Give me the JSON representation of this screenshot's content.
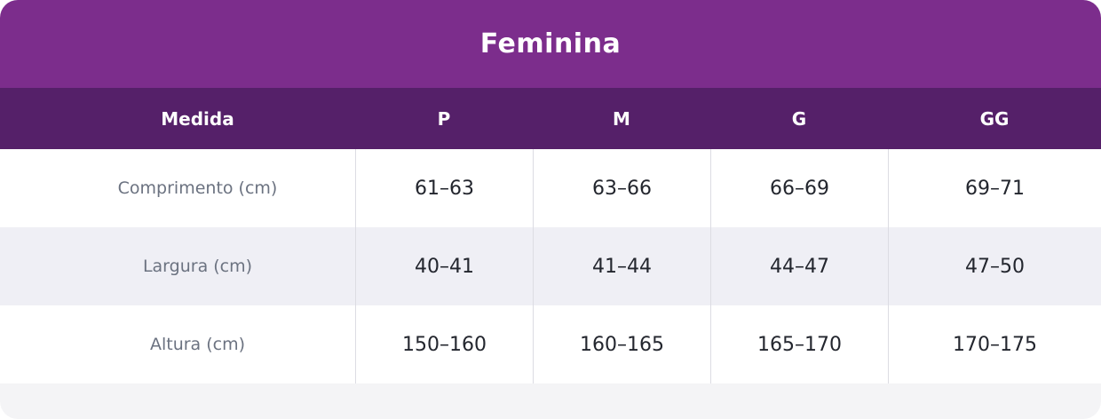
{
  "chart_data": {
    "type": "table",
    "title": "Feminina",
    "columns": [
      "Medida",
      "P",
      "M",
      "G",
      "GG"
    ],
    "rows": [
      [
        "Comprimento (cm)",
        "61–63",
        "63–66",
        "66–69",
        "69–71"
      ],
      [
        "Largura (cm)",
        "40–41",
        "41–44",
        "44–47",
        "47–50"
      ],
      [
        "Altura (cm)",
        "150–160",
        "160–165",
        "165–170",
        "170–175"
      ]
    ]
  },
  "colors": {
    "title_band_purple": "#7c2d8c",
    "header_row_purple": "#552069",
    "stripe_row": "#efeff5",
    "footer_gray": "#f4f4f6",
    "divider": "#dcdce3",
    "label_text": "#6b7280",
    "value_text": "#23262e",
    "header_text": "#ffffff"
  }
}
